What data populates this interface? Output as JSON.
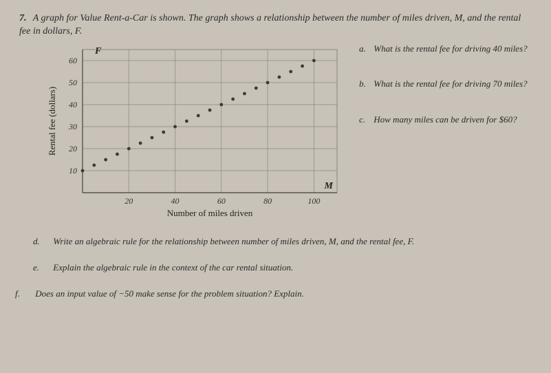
{
  "question_number": "7.",
  "intro": "A graph for Value Rent-a-Car is shown. The graph shows a relationship between the number of miles driven, M, and the rental fee in dollars, F.",
  "chart": {
    "type": "scatter",
    "x_label": "Number of miles driven",
    "y_label": "Rental fee (dollars)",
    "x_var": "M",
    "y_var": "F",
    "xlim": [
      0,
      110
    ],
    "ylim": [
      0,
      65
    ],
    "x_ticks": [
      20,
      40,
      60,
      80,
      100
    ],
    "y_ticks": [
      10,
      20,
      30,
      40,
      50,
      60
    ],
    "grid_step_x": 20,
    "grid_step_y": 10,
    "grid_color": "#888888",
    "axis_color": "#555555",
    "background_color": "transparent",
    "point_color": "#3a3a3a",
    "point_radius": 2.4,
    "tick_fontsize": 12,
    "label_fontsize": 13,
    "points": [
      [
        0,
        10
      ],
      [
        5,
        12.5
      ],
      [
        10,
        15
      ],
      [
        15,
        17.5
      ],
      [
        20,
        20
      ],
      [
        25,
        22.5
      ],
      [
        30,
        25
      ],
      [
        35,
        27.5
      ],
      [
        40,
        30
      ],
      [
        45,
        32.5
      ],
      [
        50,
        35
      ],
      [
        55,
        37.5
      ],
      [
        60,
        40
      ],
      [
        65,
        42.5
      ],
      [
        70,
        45
      ],
      [
        75,
        47.5
      ],
      [
        80,
        50
      ],
      [
        85,
        52.5
      ],
      [
        90,
        55
      ],
      [
        95,
        57.5
      ],
      [
        100,
        60
      ]
    ]
  },
  "sub_a": {
    "letter": "a.",
    "text": "What is the rental fee for driving 40 miles?"
  },
  "sub_b": {
    "letter": "b.",
    "text": "What is the rental fee for driving 70 miles?"
  },
  "sub_c": {
    "letter": "c.",
    "text": "How many miles can be driven for $60?"
  },
  "sub_d": {
    "letter": "d.",
    "text": "Write an algebraic rule for the relationship between number of miles driven, M, and the rental fee, F."
  },
  "sub_e": {
    "letter": "e.",
    "text": "Explain the algebraic rule in the context of the car rental situation."
  },
  "sub_f": {
    "letter": "f.",
    "text": "Does an input value of −50 make sense for the problem situation? Explain."
  }
}
